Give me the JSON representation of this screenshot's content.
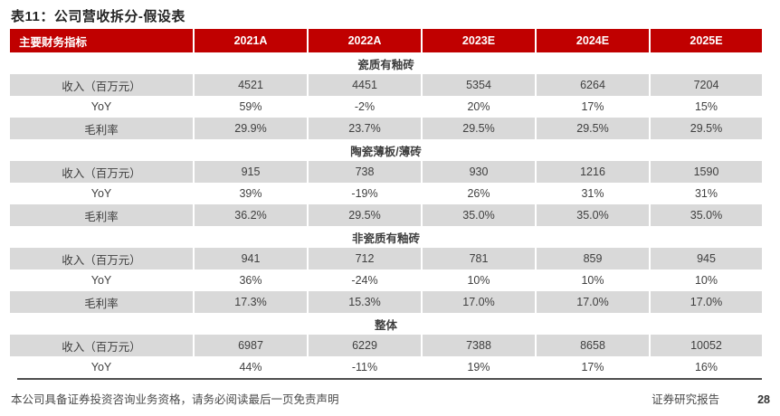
{
  "page": {
    "title": "表11：公司营收拆分-假设表"
  },
  "colors": {
    "header_red": "#C00000",
    "row_shade_gray": "#D9D9D9",
    "text_dark": "#404040"
  },
  "table": {
    "header": [
      "主要财务指标",
      "2021A",
      "2022A",
      "2023E",
      "2024E",
      "2025E"
    ],
    "sections": [
      {
        "name": "瓷质有釉砖",
        "rows": [
          {
            "label": "收入（百万元）",
            "values": [
              "4521",
              "4451",
              "5354",
              "6264",
              "7204"
            ],
            "shaded": true
          },
          {
            "label": "YoY",
            "values": [
              "59%",
              "-2%",
              "20%",
              "17%",
              "15%"
            ],
            "shaded": false
          },
          {
            "label": "毛利率",
            "values": [
              "29.9%",
              "23.7%",
              "29.5%",
              "29.5%",
              "29.5%"
            ],
            "shaded": true
          }
        ]
      },
      {
        "name": "陶瓷薄板/薄砖",
        "rows": [
          {
            "label": "收入（百万元）",
            "values": [
              "915",
              "738",
              "930",
              "1216",
              "1590"
            ],
            "shaded": true
          },
          {
            "label": "YoY",
            "values": [
              "39%",
              "-19%",
              "26%",
              "31%",
              "31%"
            ],
            "shaded": false
          },
          {
            "label": "毛利率",
            "values": [
              "36.2%",
              "29.5%",
              "35.0%",
              "35.0%",
              "35.0%"
            ],
            "shaded": true
          }
        ]
      },
      {
        "name": "非瓷质有釉砖",
        "rows": [
          {
            "label": "收入（百万元）",
            "values": [
              "941",
              "712",
              "781",
              "859",
              "945"
            ],
            "shaded": true
          },
          {
            "label": "YoY",
            "values": [
              "36%",
              "-24%",
              "10%",
              "10%",
              "10%"
            ],
            "shaded": false
          },
          {
            "label": "毛利率",
            "values": [
              "17.3%",
              "15.3%",
              "17.0%",
              "17.0%",
              "17.0%"
            ],
            "shaded": true
          }
        ]
      },
      {
        "name": "整体",
        "rows": [
          {
            "label": "收入（百万元）",
            "values": [
              "6987",
              "6229",
              "7388",
              "8658",
              "10052"
            ],
            "shaded": true
          },
          {
            "label": "YoY",
            "values": [
              "44%",
              "-11%",
              "19%",
              "17%",
              "16%"
            ],
            "shaded": false
          }
        ]
      }
    ]
  },
  "footer": {
    "disclaimer": "本公司具备证券投资咨询业务资格，请务必阅读最后一页免责声明",
    "report_type": "证券研究报告",
    "page_number": "28"
  }
}
